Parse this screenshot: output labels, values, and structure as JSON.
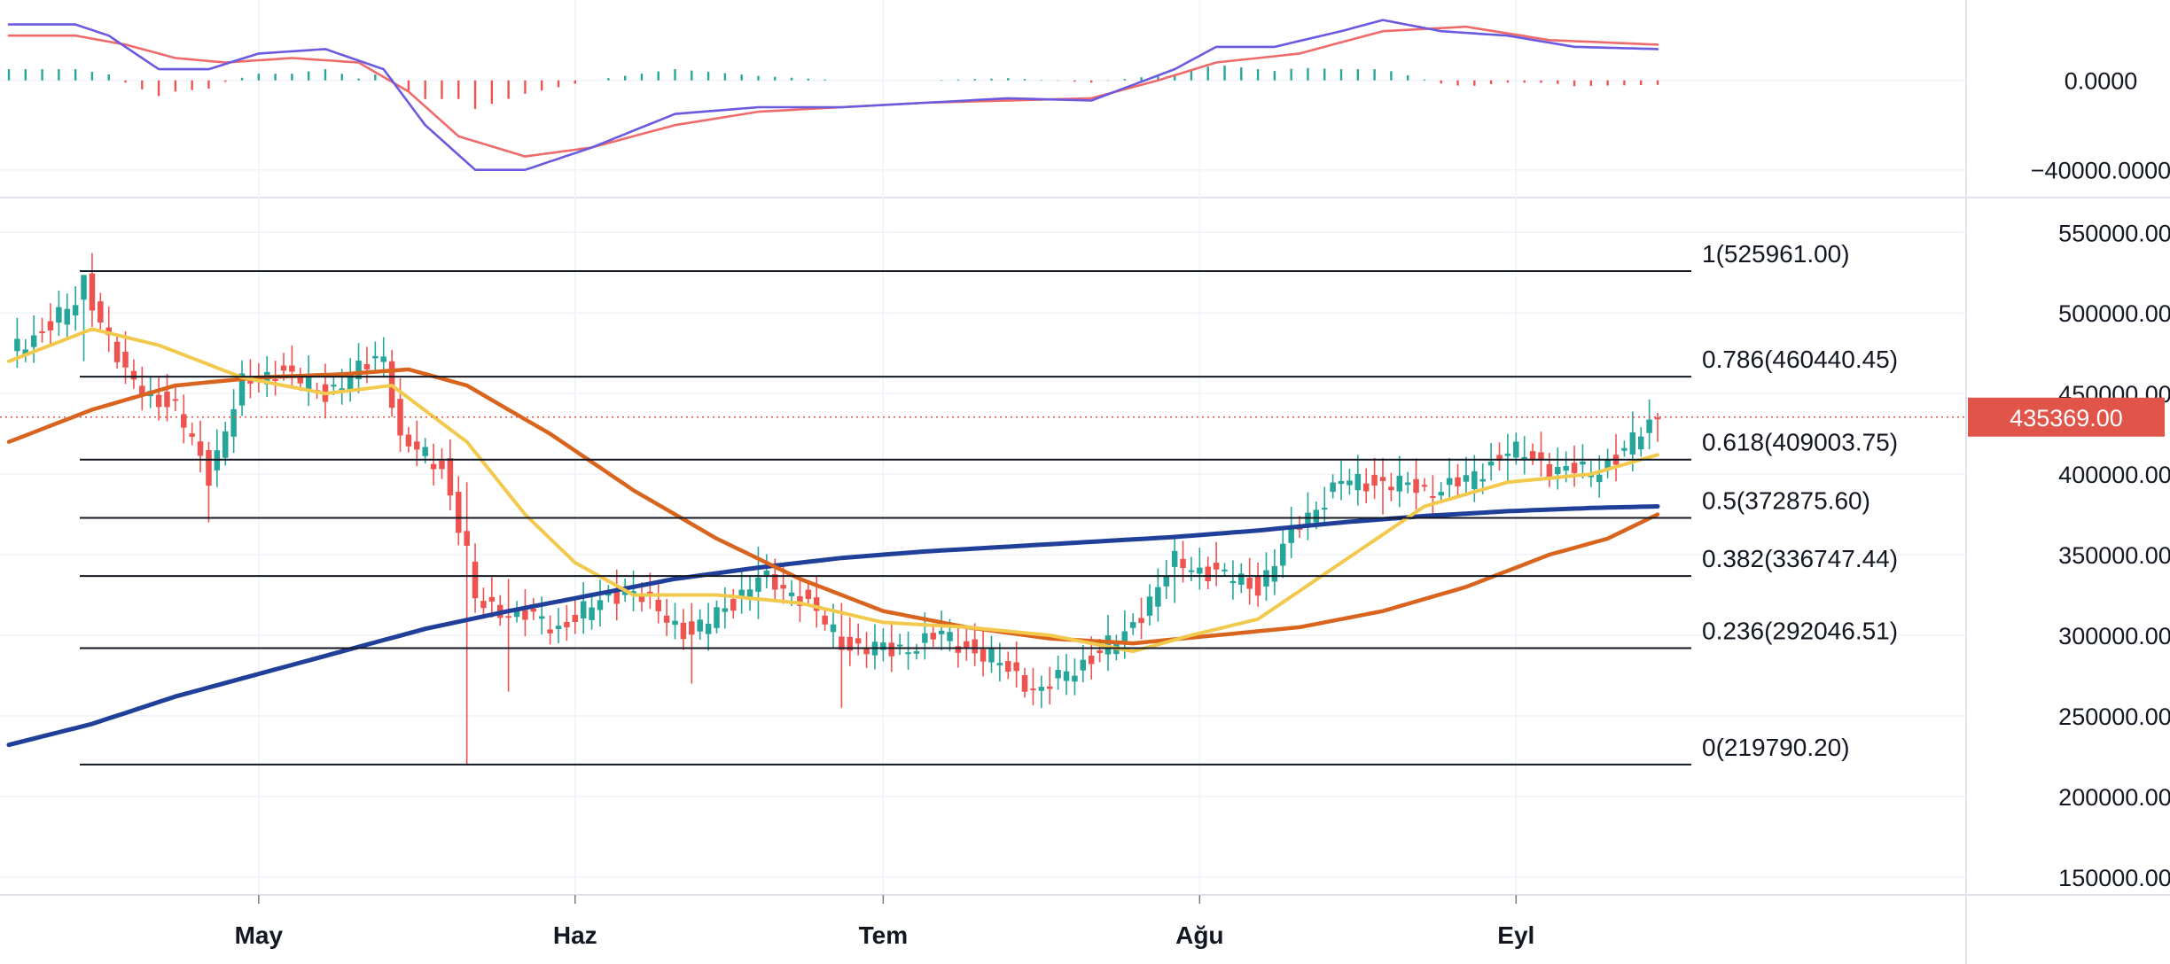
{
  "chart_data": {
    "type": "candlestick",
    "colors": {
      "up": "#26a69a",
      "down": "#ef5350",
      "ma_short": "#f2c94c",
      "ma_mid": "#d9641e",
      "ma_long": "#1f3f99",
      "macd_line": "#6a5ae0",
      "macd_signal": "#ef6a6a",
      "current_price": "#e0544a"
    },
    "time_axis": [
      "May",
      "Haz",
      "Tem",
      "Ağu",
      "Eyl"
    ],
    "price_axis": {
      "ticks": [
        "550000.00",
        "500000.00",
        "450000.00",
        "400000.00",
        "350000.00",
        "300000.00",
        "250000.00",
        "200000.00",
        "150000.00"
      ],
      "range": [
        140000,
        565000
      ]
    },
    "macd_axis": {
      "ticks": [
        "0.0000",
        "−40000.0000"
      ],
      "range": [
        -52000,
        30000
      ]
    },
    "current_price": "435369.00",
    "fibonacci": [
      {
        "label": "1(525961.00)",
        "value": 525961.0
      },
      {
        "label": "0.786(460440.45)",
        "value": 460440.45
      },
      {
        "label": "0.618(409003.75)",
        "value": 409003.75
      },
      {
        "label": "0.5(372875.60)",
        "value": 372875.6
      },
      {
        "label": "0.382(336747.44)",
        "value": 336747.44
      },
      {
        "label": "0.236(292046.51)",
        "value": 292046.51
      },
      {
        "label": "0(219790.20)",
        "value": 219790.2
      }
    ],
    "candle_path": [
      [
        0,
        475000
      ],
      [
        8,
        505000
      ],
      [
        9,
        520000
      ],
      [
        14,
        460000
      ],
      [
        20,
        440000
      ],
      [
        24,
        400000
      ],
      [
        28,
        455000
      ],
      [
        32,
        465000
      ],
      [
        38,
        450000
      ],
      [
        45,
        475000
      ],
      [
        47,
        420000
      ],
      [
        52,
        405000
      ],
      [
        55,
        350000
      ],
      [
        56,
        320000
      ],
      [
        60,
        315000
      ],
      [
        66,
        305000
      ],
      [
        74,
        330000
      ],
      [
        82,
        300000
      ],
      [
        90,
        335000
      ],
      [
        95,
        325000
      ],
      [
        100,
        295000
      ],
      [
        106,
        290000
      ],
      [
        112,
        300000
      ],
      [
        118,
        285000
      ],
      [
        124,
        265000
      ],
      [
        128,
        280000
      ],
      [
        134,
        300000
      ],
      [
        140,
        345000
      ],
      [
        144,
        340000
      ],
      [
        150,
        330000
      ],
      [
        155,
        370000
      ],
      [
        160,
        395000
      ],
      [
        165,
        395000
      ],
      [
        170,
        390000
      ],
      [
        175,
        395000
      ],
      [
        180,
        415000
      ],
      [
        185,
        405000
      ],
      [
        190,
        400000
      ],
      [
        194,
        415000
      ],
      [
        198,
        435369
      ]
    ],
    "candle_wicks": [
      [
        9,
        522000,
        470000
      ],
      [
        24,
        420000,
        370000
      ],
      [
        55,
        395000,
        219790
      ],
      [
        60,
        335000,
        265000
      ],
      [
        82,
        320000,
        270000
      ],
      [
        90,
        355000,
        310000
      ],
      [
        100,
        320000,
        255000
      ],
      [
        124,
        275000,
        255000
      ],
      [
        140,
        360000,
        320000
      ],
      [
        165,
        410000,
        375000
      ],
      [
        180,
        425000,
        395000
      ],
      [
        198,
        438000,
        420000
      ]
    ],
    "ma_short": [
      [
        0,
        470000
      ],
      [
        10,
        490000
      ],
      [
        18,
        480000
      ],
      [
        28,
        460000
      ],
      [
        38,
        450000
      ],
      [
        46,
        455000
      ],
      [
        55,
        420000
      ],
      [
        62,
        375000
      ],
      [
        68,
        345000
      ],
      [
        75,
        325000
      ],
      [
        85,
        325000
      ],
      [
        95,
        320000
      ],
      [
        105,
        308000
      ],
      [
        115,
        305000
      ],
      [
        125,
        300000
      ],
      [
        135,
        290000
      ],
      [
        142,
        300000
      ],
      [
        150,
        310000
      ],
      [
        160,
        345000
      ],
      [
        170,
        380000
      ],
      [
        180,
        395000
      ],
      [
        190,
        400000
      ],
      [
        198,
        412000
      ]
    ],
    "ma_mid": [
      [
        0,
        420000
      ],
      [
        10,
        440000
      ],
      [
        20,
        455000
      ],
      [
        30,
        460000
      ],
      [
        40,
        462000
      ],
      [
        48,
        465000
      ],
      [
        55,
        455000
      ],
      [
        65,
        425000
      ],
      [
        75,
        390000
      ],
      [
        85,
        360000
      ],
      [
        95,
        335000
      ],
      [
        105,
        315000
      ],
      [
        115,
        305000
      ],
      [
        125,
        298000
      ],
      [
        135,
        295000
      ],
      [
        145,
        300000
      ],
      [
        155,
        305000
      ],
      [
        165,
        315000
      ],
      [
        175,
        330000
      ],
      [
        185,
        350000
      ],
      [
        192,
        360000
      ],
      [
        198,
        375000
      ]
    ],
    "ma_long": [
      [
        0,
        232000
      ],
      [
        10,
        245000
      ],
      [
        20,
        262000
      ],
      [
        30,
        276000
      ],
      [
        40,
        290000
      ],
      [
        50,
        304000
      ],
      [
        60,
        315000
      ],
      [
        70,
        325000
      ],
      [
        80,
        335000
      ],
      [
        90,
        342000
      ],
      [
        100,
        348000
      ],
      [
        110,
        352000
      ],
      [
        120,
        355000
      ],
      [
        130,
        358000
      ],
      [
        140,
        361000
      ],
      [
        150,
        365000
      ],
      [
        160,
        370000
      ],
      [
        170,
        374000
      ],
      [
        180,
        377000
      ],
      [
        190,
        379000
      ],
      [
        198,
        380000
      ]
    ],
    "macd_line": [
      [
        0,
        25000
      ],
      [
        8,
        25000
      ],
      [
        12,
        20000
      ],
      [
        18,
        5000
      ],
      [
        24,
        5000
      ],
      [
        30,
        12000
      ],
      [
        38,
        14000
      ],
      [
        45,
        5000
      ],
      [
        50,
        -20000
      ],
      [
        56,
        -40000
      ],
      [
        62,
        -40000
      ],
      [
        70,
        -30000
      ],
      [
        80,
        -15000
      ],
      [
        90,
        -12000
      ],
      [
        100,
        -12000
      ],
      [
        110,
        -10000
      ],
      [
        120,
        -8000
      ],
      [
        130,
        -9000
      ],
      [
        140,
        5000
      ],
      [
        145,
        15000
      ],
      [
        152,
        15000
      ],
      [
        160,
        22000
      ],
      [
        165,
        27000
      ],
      [
        172,
        22000
      ],
      [
        180,
        20000
      ],
      [
        188,
        15000
      ],
      [
        198,
        14000
      ]
    ],
    "macd_signal": [
      [
        0,
        20000
      ],
      [
        8,
        20000
      ],
      [
        14,
        16000
      ],
      [
        20,
        10000
      ],
      [
        26,
        8000
      ],
      [
        34,
        10000
      ],
      [
        42,
        8000
      ],
      [
        48,
        -5000
      ],
      [
        54,
        -25000
      ],
      [
        62,
        -34000
      ],
      [
        70,
        -30000
      ],
      [
        80,
        -20000
      ],
      [
        90,
        -14000
      ],
      [
        100,
        -12000
      ],
      [
        110,
        -10000
      ],
      [
        120,
        -9000
      ],
      [
        130,
        -8000
      ],
      [
        138,
        0
      ],
      [
        145,
        8000
      ],
      [
        155,
        12000
      ],
      [
        165,
        22000
      ],
      [
        175,
        24000
      ],
      [
        185,
        18000
      ],
      [
        198,
        16000
      ]
    ]
  }
}
